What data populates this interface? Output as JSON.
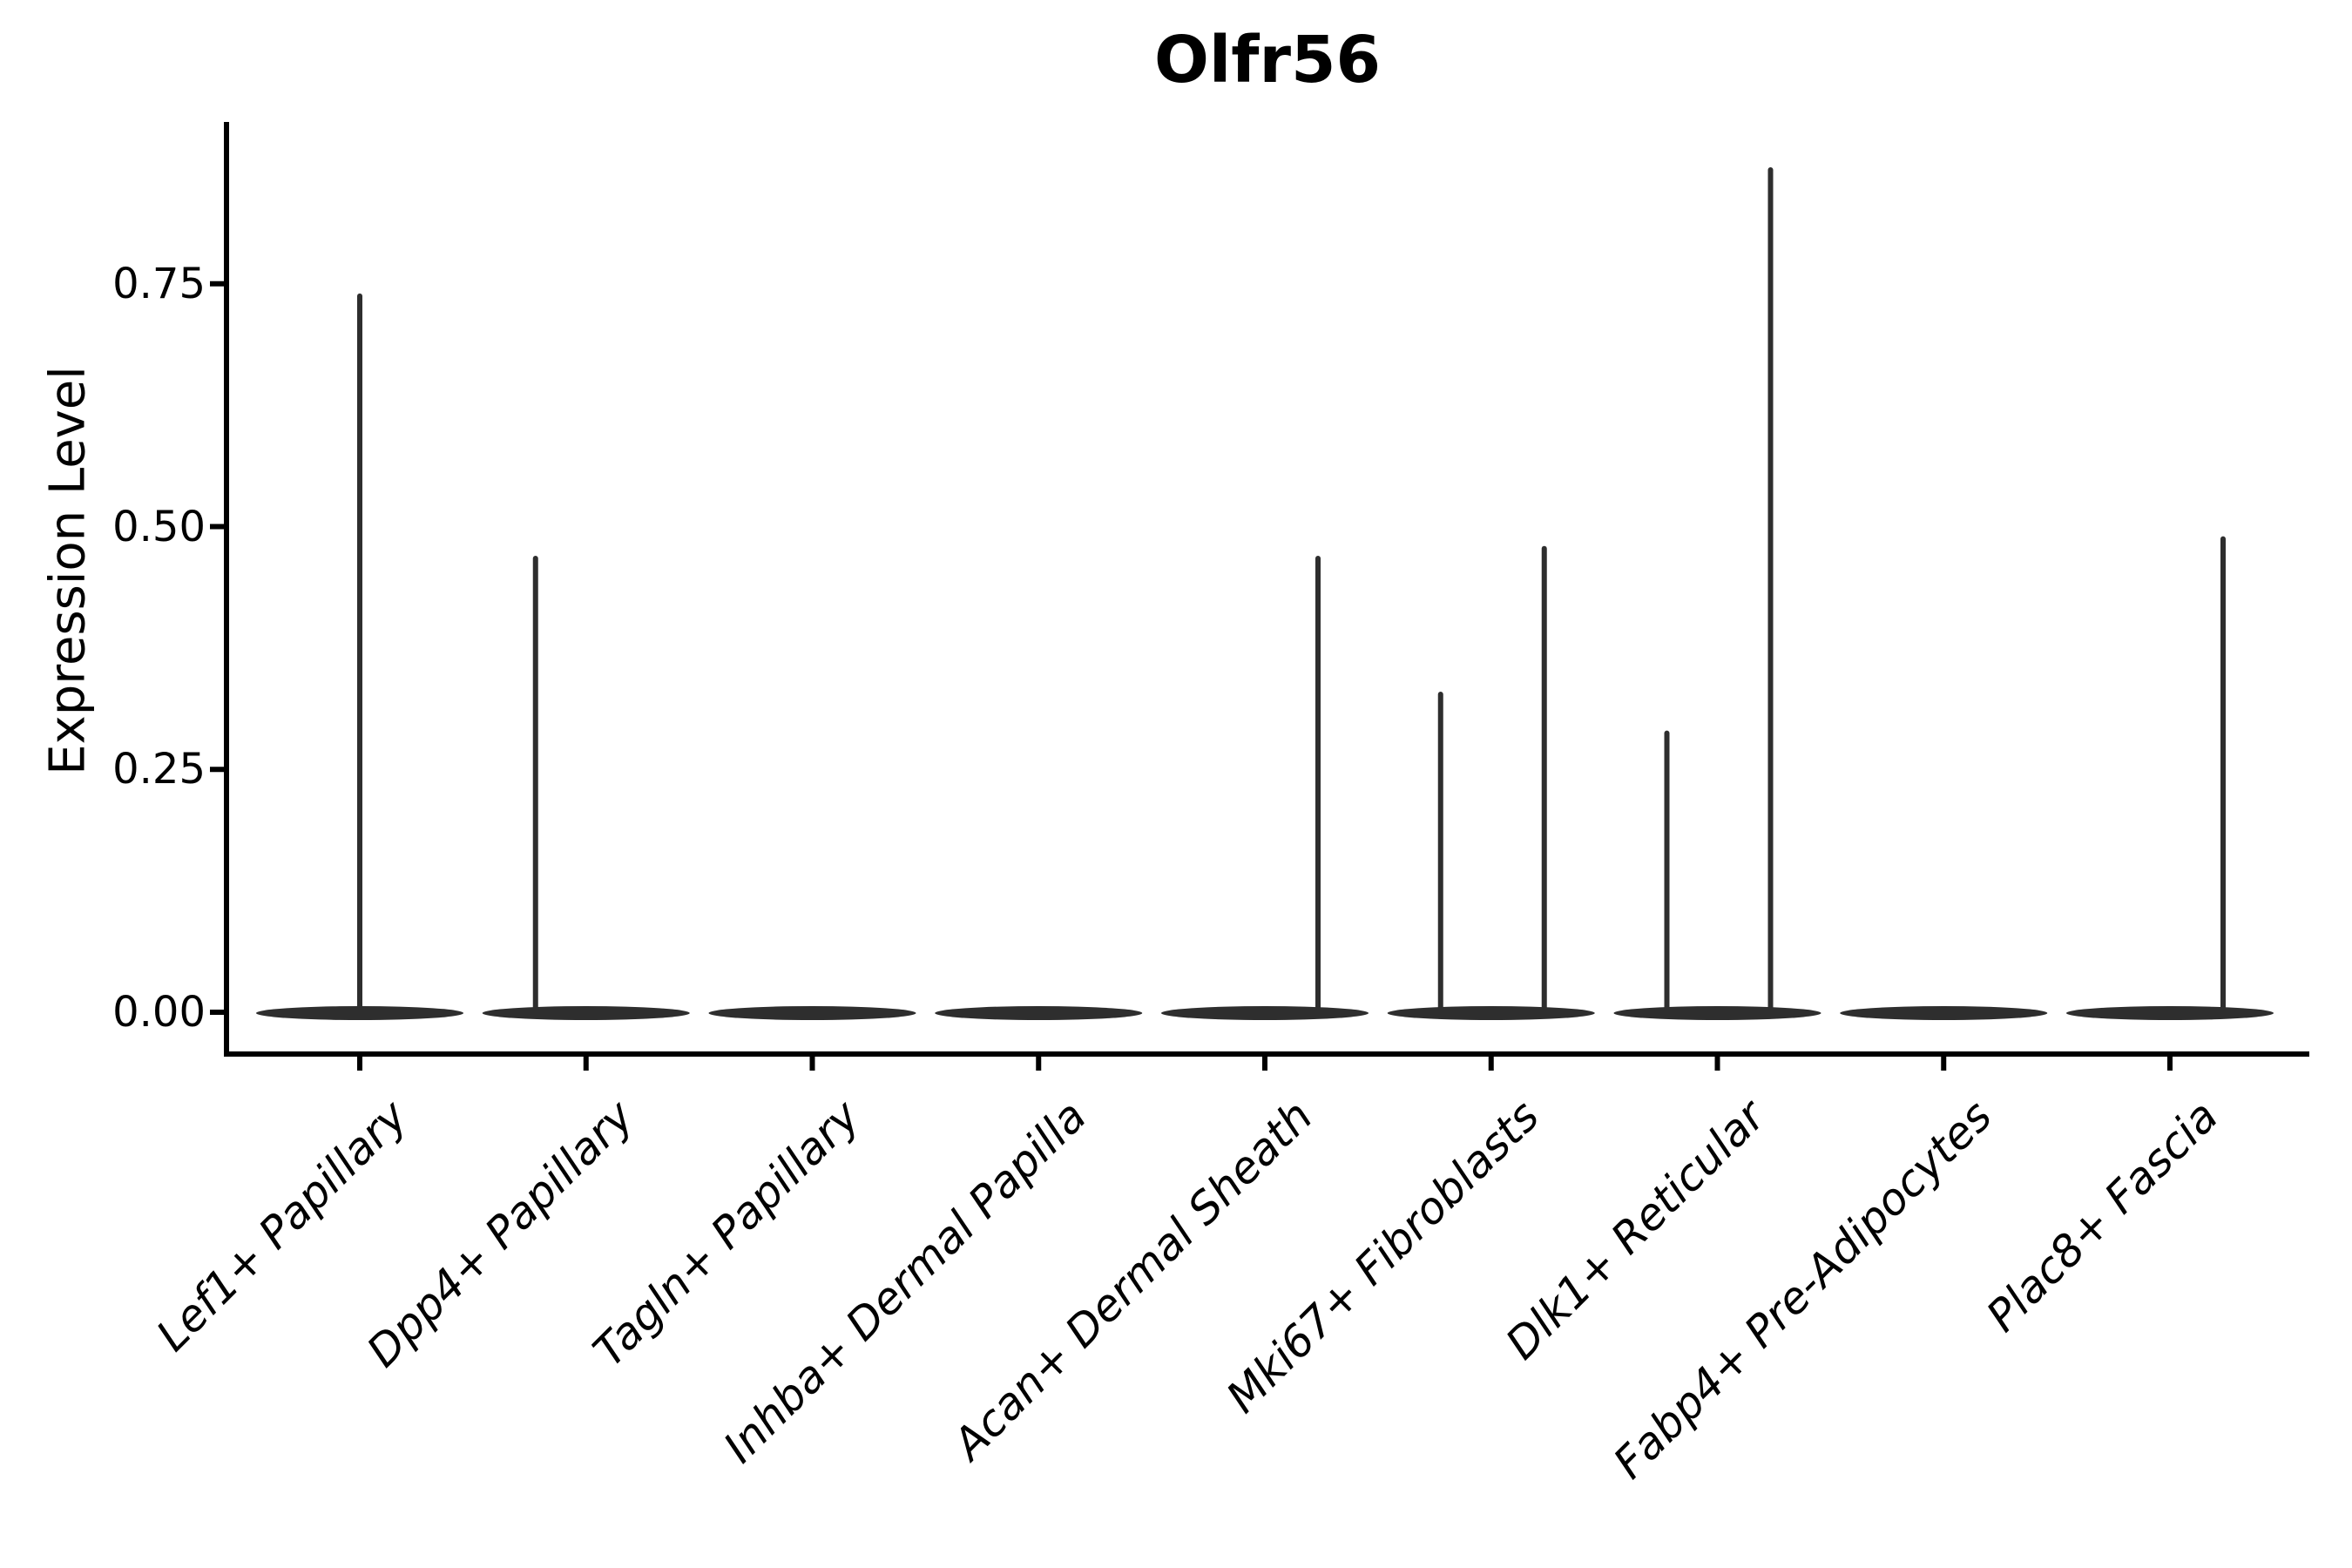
{
  "title": "Olfr56",
  "chart_data": {
    "type": "violin",
    "title": "Olfr56",
    "ylabel": "Expression Level",
    "xlabel": "",
    "ytick_labels": [
      "0.00",
      "0.25",
      "0.50",
      "0.75"
    ],
    "ytick_values": [
      0.0,
      0.25,
      0.5,
      0.75
    ],
    "ylim": [
      -0.04,
      0.92
    ],
    "grid": false,
    "legend": "none",
    "categories": [
      "Lef1+ Papillary",
      "Dpp4+ Papillary",
      "Tagln+ Papillary",
      "Inhba+ Dermal Papilla",
      "Acan+ Dermal Sheath",
      "Mki67+ Fibroblasts",
      "Dlk1+ Reticular",
      "Fabp4+ Pre-Adipocytes",
      "Plac8+ Fascia"
    ],
    "violins": [
      {
        "category": "Lef1+ Papillary",
        "baseline_value": 0,
        "spikes": [
          {
            "position": "center",
            "max_expression": 0.74
          }
        ]
      },
      {
        "category": "Dpp4+ Papillary",
        "baseline_value": 0,
        "spikes": [
          {
            "position": "left",
            "max_expression": 0.47
          }
        ]
      },
      {
        "category": "Tagln+ Papillary",
        "baseline_value": 0,
        "spikes": []
      },
      {
        "category": "Inhba+ Dermal Papilla",
        "baseline_value": 0,
        "spikes": []
      },
      {
        "category": "Acan+ Dermal Sheath",
        "baseline_value": 0,
        "spikes": [
          {
            "position": "right",
            "max_expression": 0.47
          }
        ]
      },
      {
        "category": "Mki67+ Fibroblasts",
        "baseline_value": 0,
        "spikes": [
          {
            "position": "left",
            "max_expression": 0.33
          },
          {
            "position": "right",
            "max_expression": 0.48
          }
        ]
      },
      {
        "category": "Dlk1+ Reticular",
        "baseline_value": 0,
        "spikes": [
          {
            "position": "left",
            "max_expression": 0.29
          },
          {
            "position": "right",
            "max_expression": 0.87
          }
        ]
      },
      {
        "category": "Fabp4+ Pre-Adipocytes",
        "baseline_value": 0,
        "spikes": []
      },
      {
        "category": "Plac8+ Fascia",
        "baseline_value": 0,
        "spikes": [
          {
            "position": "right",
            "max_expression": 0.49
          }
        ]
      }
    ],
    "colors": {
      "violin": "#2e2e2e",
      "axis": "#000000",
      "text": "#000000",
      "background": "#ffffff"
    }
  }
}
